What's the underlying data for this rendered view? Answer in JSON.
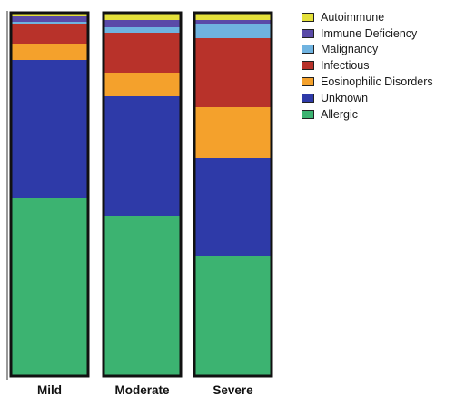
{
  "chart_data": {
    "type": "bar",
    "stacked": true,
    "normalized": true,
    "categories": [
      "Mild",
      "Moderate",
      "Severe"
    ],
    "series": [
      {
        "name": "Allergic",
        "color": "#3cb371",
        "values": [
          49,
          44,
          33
        ]
      },
      {
        "name": "Unknown",
        "color": "#2e3aa8",
        "values": [
          38,
          33,
          27
        ]
      },
      {
        "name": "Eosinophilic Disorders",
        "color": "#f4a12c",
        "values": [
          4.5,
          6.5,
          14
        ]
      },
      {
        "name": "Infectious",
        "color": "#b8322a",
        "values": [
          5.5,
          11,
          19
        ]
      },
      {
        "name": "Malignancy",
        "color": "#6fb3e0",
        "values": [
          0.5,
          1.5,
          4
        ]
      },
      {
        "name": "Immune Deficiency",
        "color": "#5a4aa8",
        "values": [
          1.5,
          2,
          1
        ]
      },
      {
        "name": "Autoimmune",
        "color": "#e4e03a",
        "values": [
          1,
          2,
          2
        ]
      }
    ],
    "legend": {
      "position": "top-right",
      "order": [
        "Autoimmune",
        "Immune Deficiency",
        "Malignancy",
        "Infectious",
        "Eosinophilic Disorders",
        "Unknown",
        "Allergic"
      ]
    },
    "ylim": [
      0,
      100
    ],
    "grid": false
  }
}
